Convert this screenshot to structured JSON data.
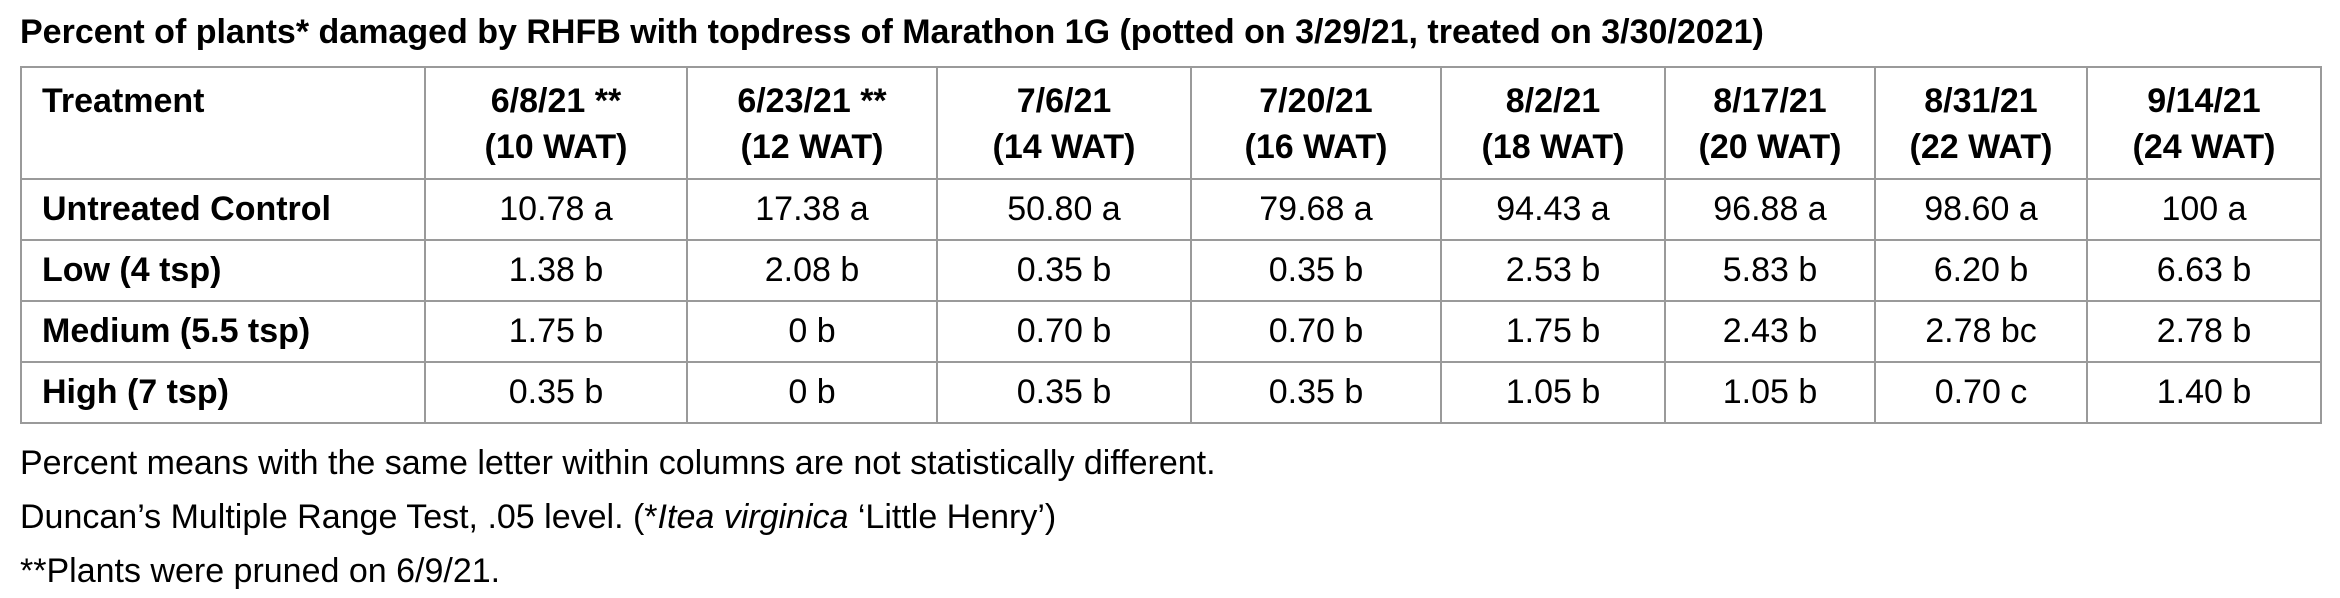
{
  "title": "Percent of plants* damaged by RHFB with topdress of Marathon 1G (potted on 3/29/21, treated on 3/30/2021)",
  "table": {
    "header": {
      "treatment": "Treatment",
      "columns": [
        {
          "date": "6/8/21 **",
          "wat": "(10 WAT)"
        },
        {
          "date": "6/23/21 **",
          "wat": "(12 WAT)"
        },
        {
          "date": "7/6/21",
          "wat": "(14 WAT)"
        },
        {
          "date": "7/20/21",
          "wat": "(16 WAT)"
        },
        {
          "date": "8/2/21",
          "wat": "(18 WAT)"
        },
        {
          "date": "8/17/21",
          "wat": "(20 WAT)"
        },
        {
          "date": "8/31/21",
          "wat": "(22 WAT)"
        },
        {
          "date": "9/14/21",
          "wat": "(24 WAT)"
        }
      ]
    },
    "rows": [
      {
        "treatment": "Untreated Control",
        "values": [
          "10.78 a",
          "17.38 a",
          "50.80 a",
          "79.68 a",
          "94.43 a",
          "96.88 a",
          "98.60 a",
          "100 a"
        ]
      },
      {
        "treatment": "Low (4 tsp)",
        "values": [
          "1.38 b",
          "2.08 b",
          "0.35 b",
          "0.35 b",
          "2.53 b",
          "5.83 b",
          "6.20 b",
          "6.63 b"
        ]
      },
      {
        "treatment": "Medium (5.5 tsp)",
        "values": [
          "1.75 b",
          "0 b",
          "0.70 b",
          "0.70 b",
          "1.75 b",
          "2.43 b",
          "2.78 bc",
          "2.78 b"
        ]
      },
      {
        "treatment": "High (7 tsp)",
        "values": [
          "0.35 b",
          "0 b",
          "0.35 b",
          "0.35 b",
          "1.05 b",
          "1.05 b",
          "0.70 c",
          "1.40 b"
        ]
      }
    ]
  },
  "notes": {
    "line1": "Percent means with the same letter within columns are not statistically different.",
    "line2_prefix": "Duncan’s Multiple Range Test, .05 level. (*",
    "line2_italic": "Itea virginica",
    "line2_suffix": " ‘Little Henry’)",
    "line3": "**Plants were pruned on 6/9/21."
  }
}
